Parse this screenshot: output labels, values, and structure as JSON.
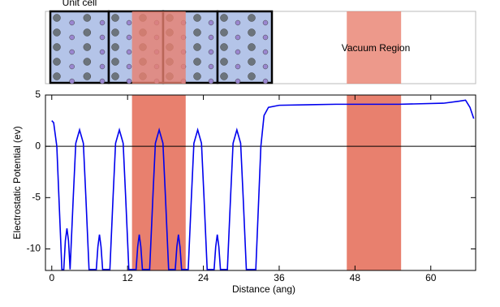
{
  "chart_data": {
    "type": "line",
    "x_label": "Distance (ang)",
    "y_label": "Electrostatic Potential (ev)",
    "annotations": {
      "unit_cell": "Unit cell",
      "vacuum": "Vacuum Region"
    },
    "x": [
      0,
      0.3,
      0.8,
      1.2,
      1.6,
      1.9,
      2.15,
      2.4,
      2.65,
      2.9,
      3.4,
      3.8,
      4.4,
      5.0,
      5.4,
      5.9,
      7.05,
      7.3,
      7.55,
      7.8,
      8.05,
      9.2,
      9.7,
      10.1,
      10.7,
      11.3,
      11.7,
      12.2,
      13.35,
      13.6,
      13.85,
      14.1,
      14.35,
      15.5,
      16.0,
      16.4,
      17.0,
      17.6,
      18.0,
      18.5,
      19.55,
      19.8,
      20.05,
      20.3,
      20.55,
      21.6,
      22.1,
      22.5,
      23.1,
      23.7,
      24.1,
      24.6,
      25.7,
      25.95,
      26.2,
      26.45,
      26.7,
      27.8,
      28.3,
      28.7,
      29.3,
      29.9,
      30.3,
      30.8,
      32.3,
      32.7,
      33.1,
      33.6,
      34.3,
      36,
      45,
      55,
      62,
      64.5,
      65.5,
      66.2,
      66.8
    ],
    "series": [
      {
        "color": "#0000ee",
        "values": [
          2.5,
          2.3,
          0,
          -6,
          -12,
          -12,
          -9.2,
          -8,
          -9.2,
          -12,
          -5,
          0.3,
          1.6,
          0.3,
          -5,
          -12,
          -12,
          -9.8,
          -8.6,
          -9.8,
          -12,
          -12,
          -5,
          0.3,
          1.6,
          0.3,
          -5,
          -12,
          -12,
          -9.8,
          -8.6,
          -9.8,
          -12,
          -12,
          -5,
          0.3,
          1.6,
          0.3,
          -5,
          -12,
          -12,
          -9.8,
          -8.6,
          -9.8,
          -12,
          -12,
          -5,
          0.3,
          1.6,
          0.3,
          -5,
          -12,
          -12,
          -9.8,
          -8.6,
          -9.8,
          -12,
          -12,
          -5,
          0.3,
          1.6,
          0.3,
          -5,
          -12,
          -12,
          -6,
          0,
          3,
          3.8,
          4.0,
          4.1,
          4.1,
          4.2,
          4.4,
          4.5,
          3.8,
          2.7
        ]
      }
    ],
    "highlight_regions": [
      [
        12.7,
        21.2
      ],
      [
        46.7,
        55.3
      ]
    ],
    "highlight_color": "#e8806e",
    "xlim": [
      -1,
      67.1
    ],
    "xticks": [
      0,
      12,
      24,
      36,
      48,
      60
    ],
    "ylim": [
      -12.1,
      5
    ],
    "yticks": [
      -10,
      -5,
      0,
      5
    ]
  }
}
